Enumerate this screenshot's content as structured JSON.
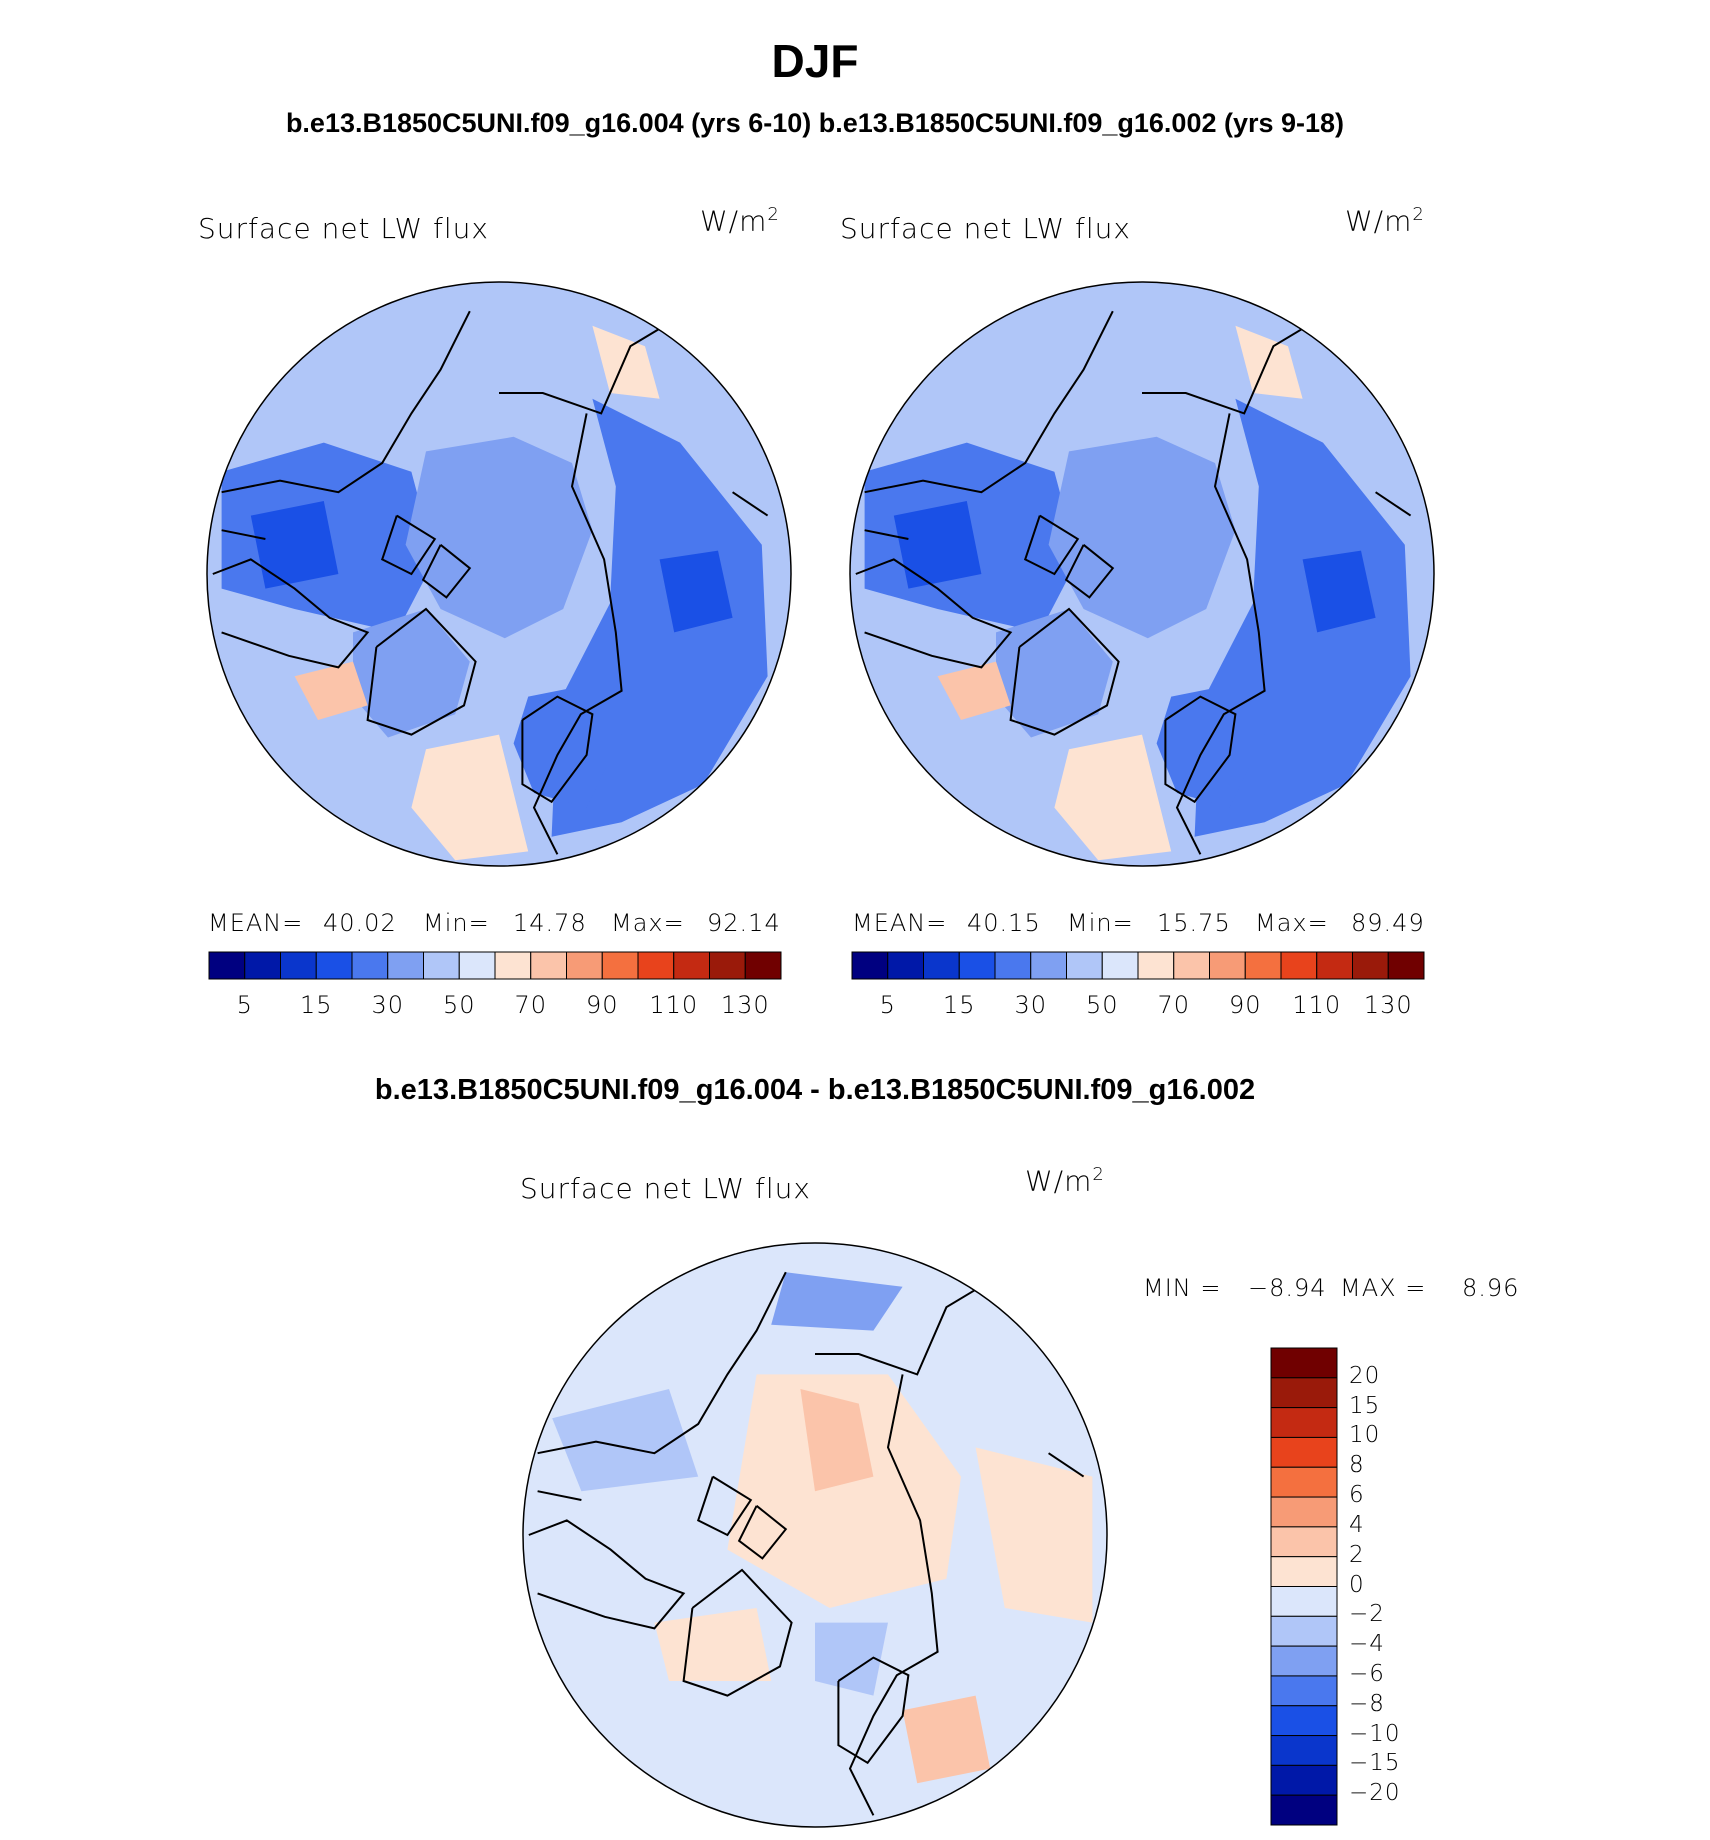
{
  "season": "DJF",
  "case_titles": "b.e13.B1850C5UNI.f09_g16.004 (yrs 6-10) b.e13.B1850C5UNI.f09_g16.002 (yrs 9-18)",
  "diff_title": "b.e13.B1850C5UNI.f09_g16.004 - b.e13.B1850C5UNI.f09_g16.002",
  "panels": [
    {
      "variable": "Surface net LW flux",
      "units": "W/m",
      "units_exp": "2",
      "mean_label": "MEAN=",
      "mean": "40.02",
      "min_label": "Min=",
      "min": "14.78",
      "max_label": "Max=",
      "max": "92.14"
    },
    {
      "variable": "Surface net LW flux",
      "units": "W/m",
      "units_exp": "2",
      "mean_label": "MEAN=",
      "mean": "40.15",
      "min_label": "Min=",
      "min": "15.75",
      "max_label": "Max=",
      "max": "89.49"
    }
  ],
  "diff_panel": {
    "variable": "Surface net LW flux",
    "units": "W/m",
    "units_exp": "2",
    "min_label": "MIN =",
    "min": "−8.94",
    "max_label": "MAX =",
    "max": "8.96"
  },
  "abs_colorbar": {
    "colors": [
      "#000080",
      "#0018a8",
      "#0a36cc",
      "#1a50e6",
      "#4a78ee",
      "#7fa0f2",
      "#b0c6f8",
      "#dbe6fb",
      "#fde3d2",
      "#fbc4aa",
      "#f79b76",
      "#f4703f",
      "#e8431c",
      "#c42a12",
      "#9a1a0a",
      "#700000"
    ],
    "tick_labels": [
      "5",
      "15",
      "30",
      "50",
      "70",
      "90",
      "110",
      "130"
    ]
  },
  "diff_colorbar": {
    "colors": [
      "#700000",
      "#9a1a0a",
      "#c42a12",
      "#e8431c",
      "#f4703f",
      "#f79b76",
      "#fbc4aa",
      "#fde3d2",
      "#dbe6fb",
      "#b0c6f8",
      "#7fa0f2",
      "#4a78ee",
      "#1a50e6",
      "#0a36cc",
      "#0018a8",
      "#000080"
    ],
    "tick_labels": [
      "20",
      "15",
      "10",
      "8",
      "6",
      "4",
      "2",
      "0",
      "−2",
      "−4",
      "−6",
      "−8",
      "−10",
      "−15",
      "−20"
    ]
  },
  "map_fills": {
    "ocean_light": "#dbe6fb",
    "blue2": "#b0c6f8",
    "blue3": "#7fa0f2",
    "blue4": "#4a78ee",
    "blue5": "#1a50e6",
    "warm1": "#fde3d2",
    "warm2": "#fbc4aa",
    "warm3": "#f79b76",
    "coast": "#000000"
  }
}
